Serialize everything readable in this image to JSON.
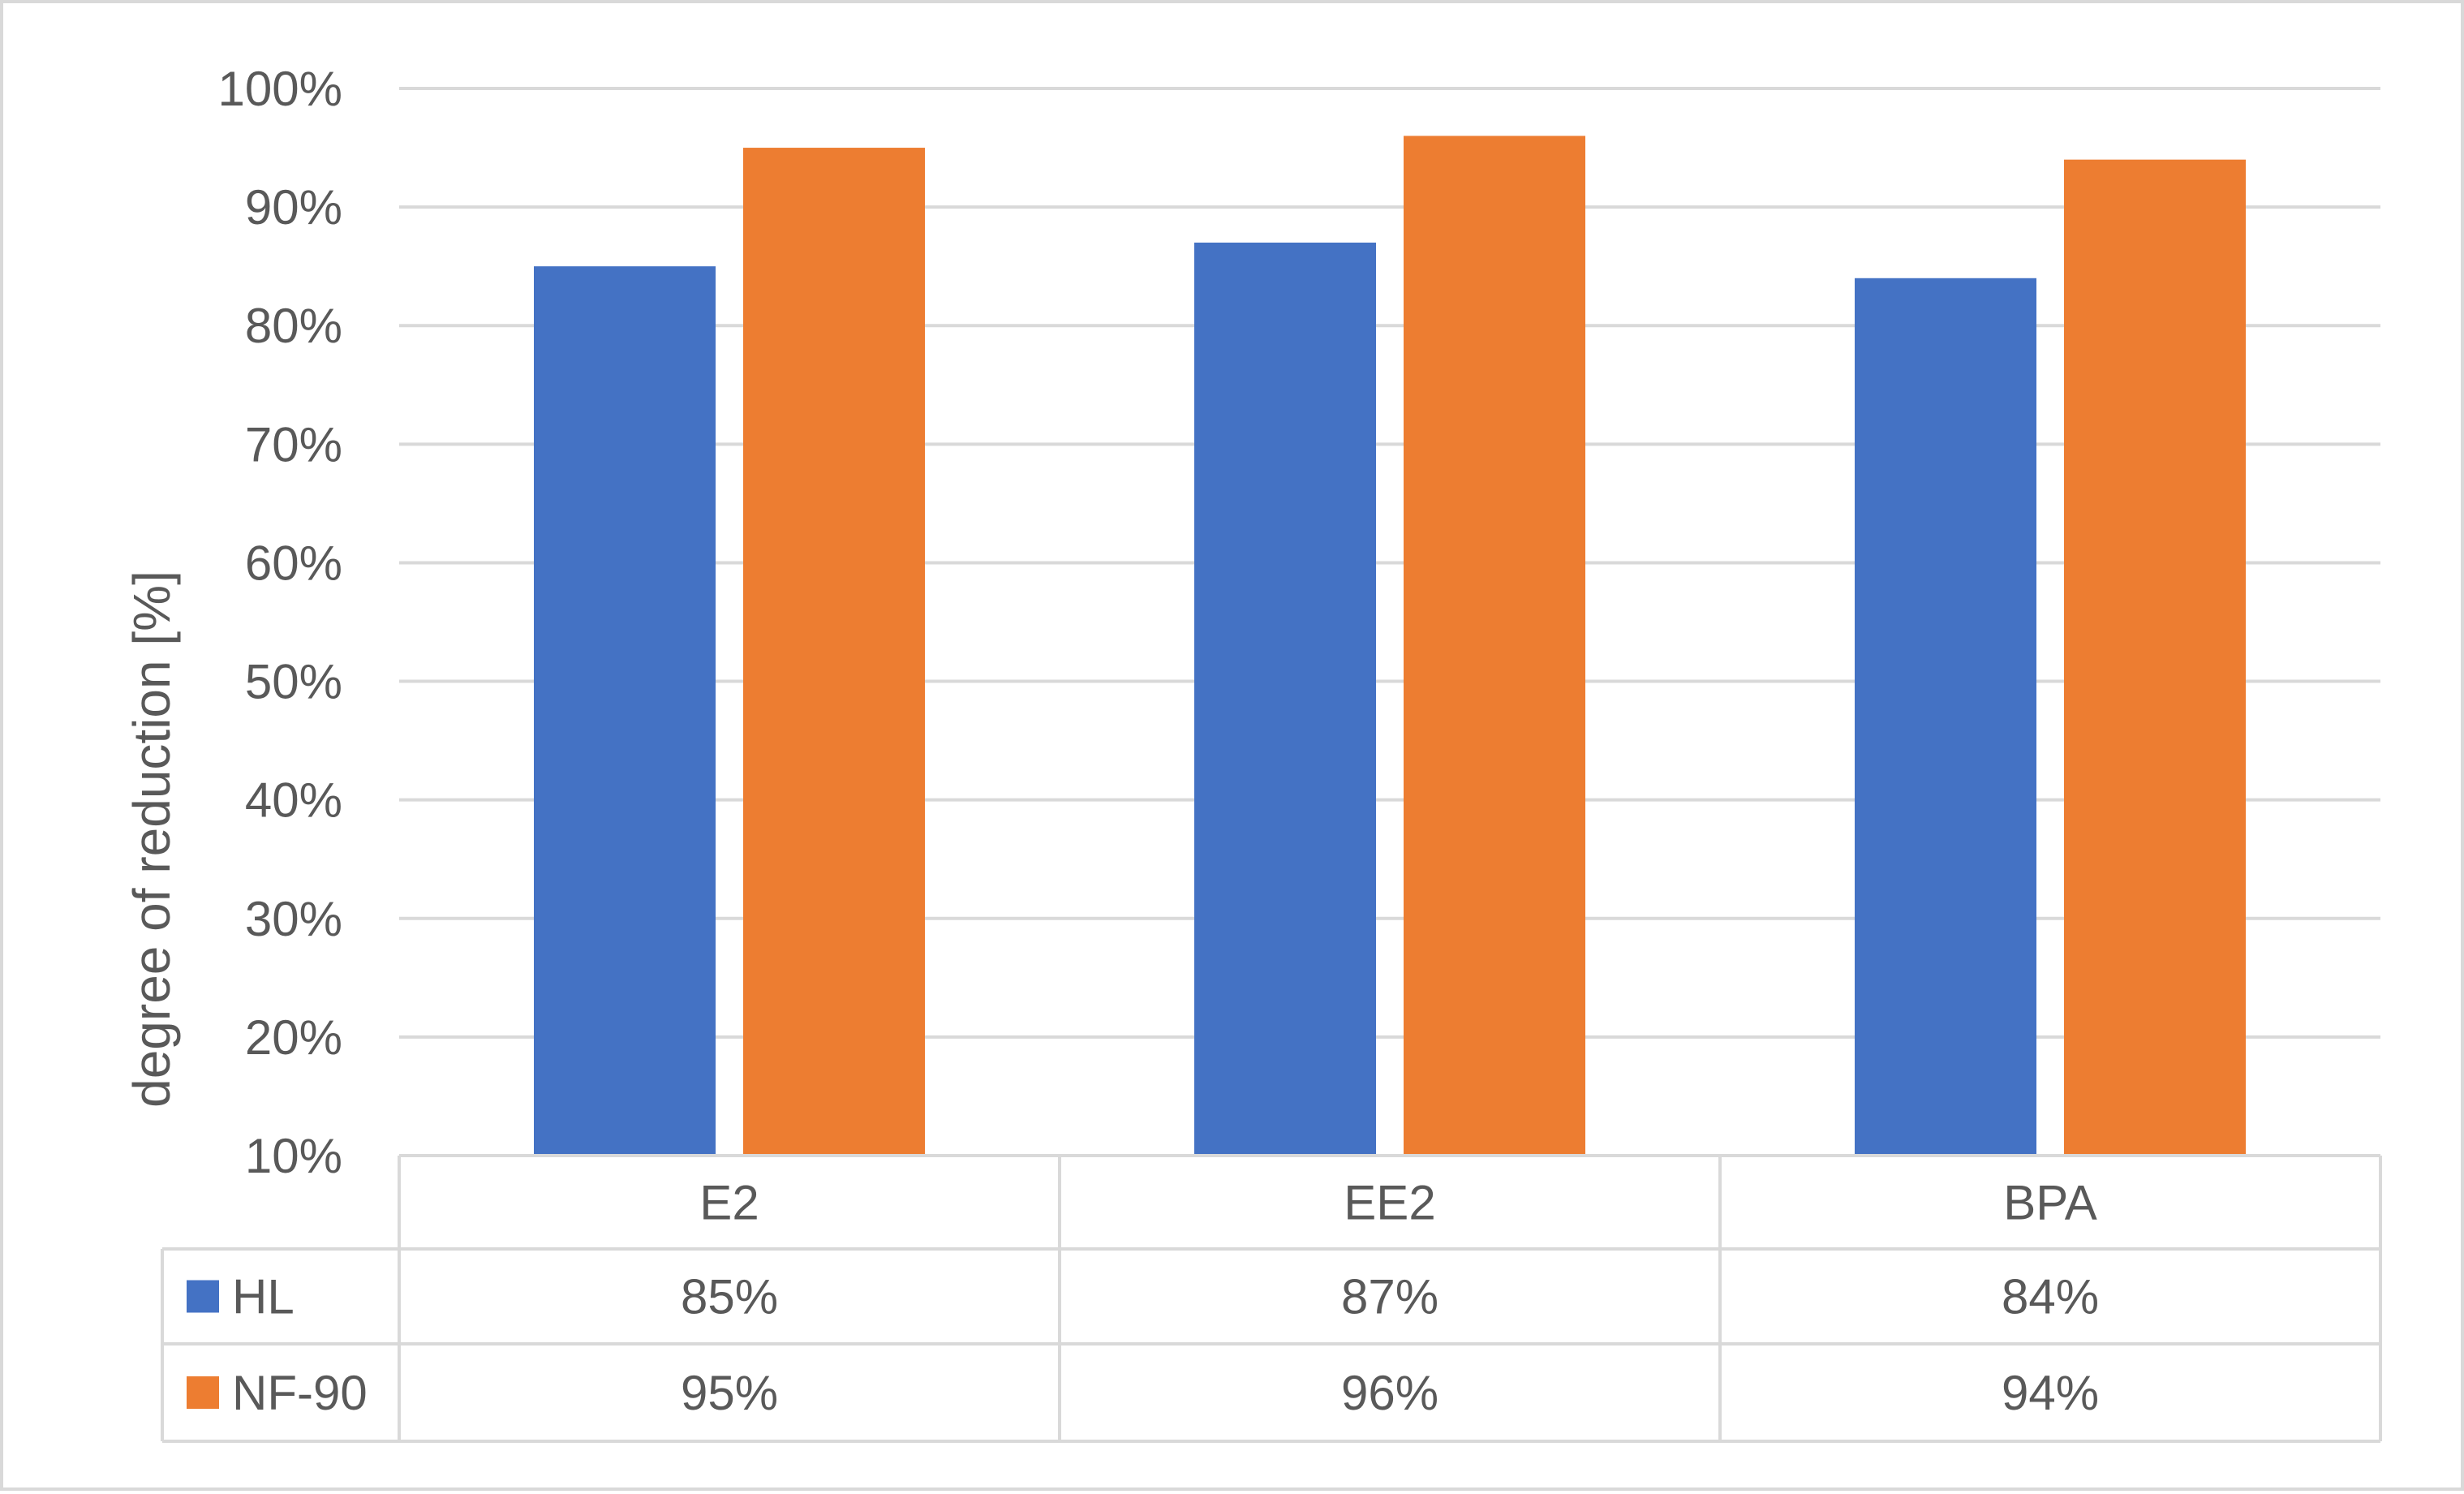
{
  "chart_data": {
    "type": "bar",
    "title": "",
    "xlabel": "",
    "ylabel": "degree of reduction [%]",
    "ylim": [
      0.1,
      1.0
    ],
    "ytick_labels": [
      "10%",
      "20%",
      "30%",
      "40%",
      "50%",
      "60%",
      "70%",
      "80%",
      "90%",
      "100%"
    ],
    "ytick_values": [
      0.1,
      0.2,
      0.3,
      0.4,
      0.5,
      0.6,
      0.7,
      0.8,
      0.9,
      1.0
    ],
    "grid": true,
    "legend": "data-table",
    "categories": [
      "E2",
      "EE2",
      "BPA"
    ],
    "series": [
      {
        "name": "HL",
        "color": "#4472c4",
        "values": [
          0.85,
          0.87,
          0.84
        ],
        "labels": [
          "85%",
          "87%",
          "84%"
        ]
      },
      {
        "name": "NF-90",
        "color": "#ed7d31",
        "values": [
          0.95,
          0.96,
          0.94
        ],
        "labels": [
          "95%",
          "96%",
          "94%"
        ]
      }
    ]
  }
}
